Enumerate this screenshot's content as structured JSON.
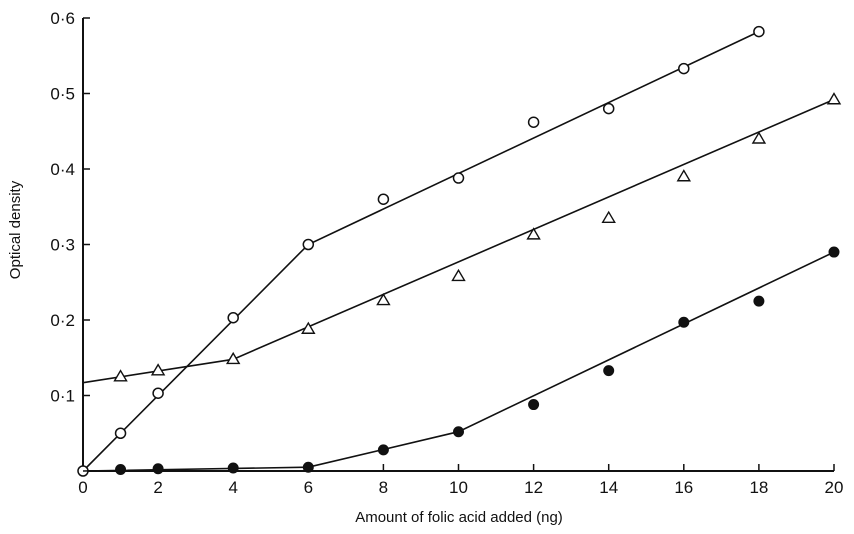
{
  "chart_data": {
    "type": "scatter",
    "title": "",
    "xlabel": "Amount of folic acid added (ng)",
    "ylabel": "Optical density",
    "xlim": [
      0,
      20
    ],
    "ylim": [
      0,
      0.6
    ],
    "x_ticks": [
      0,
      2,
      4,
      6,
      8,
      10,
      12,
      14,
      16,
      18,
      20
    ],
    "y_ticks": [
      0.1,
      0.2,
      0.3,
      0.4,
      0.5,
      0.6
    ],
    "x_tick_labels": [
      "0",
      "2",
      "4",
      "6",
      "8",
      "10",
      "12",
      "14",
      "16",
      "18",
      "20"
    ],
    "y_tick_labels": [
      "0·1",
      "0·2",
      "0·3",
      "0·4",
      "0·5",
      "0·6"
    ],
    "grid": false,
    "series": [
      {
        "marker": "open-circle",
        "points": [
          [
            0,
            0
          ],
          [
            1,
            0.05
          ],
          [
            2,
            0.103
          ],
          [
            4,
            0.203
          ],
          [
            6,
            0.3
          ],
          [
            8,
            0.36
          ],
          [
            10,
            0.388
          ],
          [
            12,
            0.462
          ],
          [
            14,
            0.48
          ],
          [
            16,
            0.533
          ],
          [
            18,
            0.582
          ]
        ],
        "fit": [
          [
            0,
            0
          ],
          [
            6,
            0.3
          ],
          [
            18,
            0.582
          ]
        ]
      },
      {
        "marker": "open-triangle",
        "points": [
          [
            1,
            0.125
          ],
          [
            2,
            0.133
          ],
          [
            4,
            0.148
          ],
          [
            6,
            0.188
          ],
          [
            8,
            0.226
          ],
          [
            10,
            0.258
          ],
          [
            12,
            0.313
          ],
          [
            14,
            0.335
          ],
          [
            16,
            0.39
          ],
          [
            18,
            0.44
          ],
          [
            20,
            0.492
          ]
        ],
        "fit": [
          [
            0,
            0.117
          ],
          [
            4,
            0.148
          ],
          [
            20,
            0.492
          ]
        ]
      },
      {
        "marker": "filled-circle",
        "points": [
          [
            1,
            0.002
          ],
          [
            2,
            0.003
          ],
          [
            4,
            0.004
          ],
          [
            6,
            0.005
          ],
          [
            8,
            0.028
          ],
          [
            10,
            0.052
          ],
          [
            12,
            0.088
          ],
          [
            14,
            0.133
          ],
          [
            16,
            0.197
          ],
          [
            18,
            0.225
          ],
          [
            20,
            0.29
          ]
        ],
        "fit": [
          [
            0,
            0
          ],
          [
            6,
            0.005
          ],
          [
            10,
            0.052
          ],
          [
            20,
            0.29
          ]
        ]
      }
    ],
    "colors": {
      "ink": "#111111",
      "background": "#ffffff"
    }
  }
}
